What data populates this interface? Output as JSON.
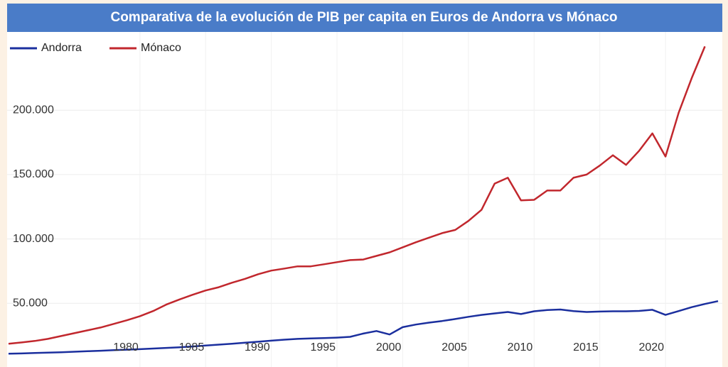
{
  "chart_data": {
    "type": "line",
    "title": "Comparativa de la evolución de PIB per capita en Euros de Andorra vs Mónaco",
    "x": [
      1970,
      1971,
      1972,
      1973,
      1974,
      1975,
      1976,
      1977,
      1978,
      1979,
      1980,
      1981,
      1982,
      1983,
      1984,
      1985,
      1986,
      1987,
      1988,
      1989,
      1990,
      1991,
      1992,
      1993,
      1994,
      1995,
      1996,
      1997,
      1998,
      1999,
      2000,
      2001,
      2002,
      2003,
      2004,
      2005,
      2006,
      2007,
      2008,
      2009,
      2010,
      2011,
      2012,
      2013,
      2014,
      2015,
      2016,
      2017,
      2018,
      2019,
      2020,
      2021,
      2022,
      2023,
      2024
    ],
    "series": [
      {
        "name": "Andorra",
        "color": "#1b2f9e",
        "values": [
          10900,
          11100,
          11400,
          11700,
          12000,
          12400,
          12800,
          13200,
          13600,
          14000,
          14400,
          14900,
          15400,
          15900,
          16500,
          17200,
          17900,
          18600,
          19400,
          20200,
          21000,
          21800,
          22400,
          22700,
          23000,
          23400,
          24000,
          26500,
          28500,
          25800,
          31500,
          33500,
          35000,
          36300,
          37800,
          39500,
          41000,
          42200,
          43300,
          41700,
          43800,
          44800,
          45200,
          44000,
          43300,
          43600,
          43800,
          43800,
          44100,
          45000,
          41000,
          44000,
          47000,
          49500,
          51700
        ]
      },
      {
        "name": "Mónaco",
        "color": "#c1272d",
        "values": [
          18600,
          19600,
          20800,
          22400,
          24600,
          26800,
          29000,
          31200,
          34000,
          36800,
          40000,
          44000,
          49000,
          53000,
          56600,
          60000,
          62500,
          66000,
          69000,
          72600,
          75400,
          77000,
          78700,
          78700,
          80300,
          82000,
          83600,
          84000,
          86800,
          89600,
          93500,
          97400,
          101000,
          104500,
          107000,
          114000,
          122600,
          143000,
          147500,
          130000,
          130400,
          137600,
          137600,
          147500,
          150000,
          157000,
          165000,
          157500,
          168500,
          182000,
          164000,
          198000,
          225000,
          249500,
          null
        ]
      }
    ],
    "xlim": [
      1970,
      2024
    ],
    "xticks": [
      1980,
      1985,
      1990,
      1995,
      2000,
      2005,
      2010,
      2015,
      2020
    ],
    "ylim": [
      0,
      258000
    ],
    "yticks": [
      {
        "value": 50000,
        "label": "50.000"
      },
      {
        "value": 100000,
        "label": "100.000"
      },
      {
        "value": 150000,
        "label": "150.000"
      },
      {
        "value": 200000,
        "label": "200.000"
      }
    ],
    "grid": true,
    "legend": "top-left"
  }
}
